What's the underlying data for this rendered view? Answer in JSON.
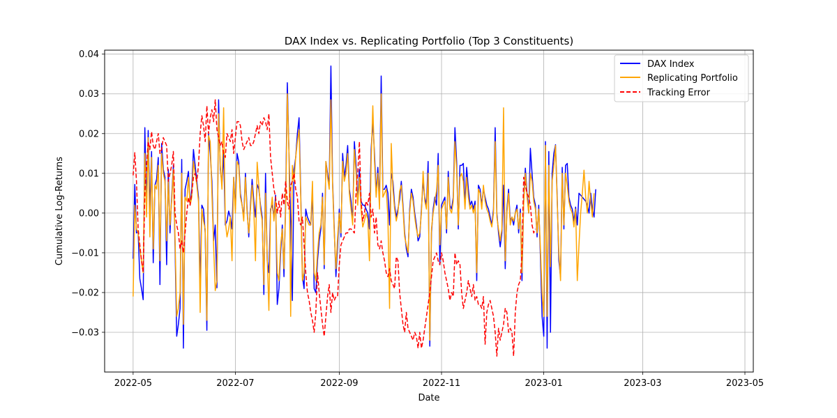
{
  "chart_data": {
    "type": "line",
    "title": "DAX Index vs. Replicating Portfolio (Top 3 Constituents)",
    "xlabel": "Date",
    "ylabel": "Cumulative Log-Returns",
    "xlim": [
      "2022-04-14",
      "2023-05-06"
    ],
    "ylim": [
      -0.04,
      0.041
    ],
    "x_ticks": [
      "2022-05-01",
      "2022-07-01",
      "2022-09-01",
      "2022-11-01",
      "2023-01-01",
      "2023-03-01",
      "2023-05-01"
    ],
    "x_tick_labels": [
      "2022-05",
      "2022-07",
      "2022-09",
      "2022-11",
      "2023-01",
      "2023-03",
      "2023-05"
    ],
    "y_ticks": [
      -0.03,
      -0.02,
      -0.01,
      0.0,
      0.01,
      0.02,
      0.03,
      0.04
    ],
    "y_tick_labels": [
      "−0.03",
      "−0.02",
      "−0.01",
      "0.00",
      "0.01",
      "0.02",
      "0.03",
      "0.04"
    ],
    "grid": true,
    "legend_position": "top-right",
    "x_start": "2022-05-01",
    "x_step_days": 1,
    "series": [
      {
        "name": "DAX Index",
        "color": "#0000ff",
        "dash": "solid",
        "values": [
          -0.0115,
          0.0072,
          -0.005,
          -0.0048,
          -0.0165,
          -0.019,
          -0.0218,
          0.0215,
          0.0015,
          0.0208,
          0.0002,
          0.0155,
          -0.0125,
          0.007,
          0.0085,
          0.014,
          -0.018,
          0.0175,
          0.011,
          0.009,
          -0.013,
          0.011,
          -0.005,
          0.004,
          0.012,
          -0.008,
          -0.031,
          -0.028,
          -0.024,
          0.0135,
          -0.034,
          0.006,
          0.008,
          0.0105,
          0.002,
          0.006,
          0.016,
          0.012,
          0.008,
          0.004,
          -0.018,
          0.002,
          0.001,
          -0.005,
          -0.0295,
          0.02,
          0.015,
          0.008,
          -0.007,
          -0.003,
          -0.0188,
          0.0285,
          0.011,
          0.0075,
          0.015,
          -0.003,
          -0.002,
          0.0005,
          -0.001,
          -0.004,
          0.009,
          0.001,
          0.015,
          0.013,
          0.005,
          0.002,
          -0.001,
          0.01,
          0.001,
          -0.006,
          0.002,
          0.0085,
          0.003,
          -0.001,
          0.0072,
          0.006,
          0.002,
          -0.001,
          -0.0205,
          0.01,
          -0.012,
          -0.015,
          0.001,
          0.002,
          -0.001,
          0.0045,
          -0.023,
          -0.019,
          -0.01,
          -0.003,
          -0.016,
          0.003,
          0.0328,
          0.015,
          -0.002,
          -0.022,
          0.011,
          0.014,
          0.02,
          0.024,
          0.005,
          -0.016,
          -0.019,
          0.001,
          -0.001,
          -0.002,
          -0.003,
          0.005,
          -0.019,
          -0.02,
          -0.012,
          -0.007,
          -0.004,
          0.005,
          -0.014,
          0.013,
          0.01,
          0.007,
          0.037,
          0.008,
          -0.004,
          -0.016,
          -0.008,
          0.001,
          -0.006,
          0.015,
          0.009,
          0.012,
          0.017,
          0.006,
          0.003,
          -0.002,
          0.018,
          0.012,
          0.003,
          0.011,
          0.003,
          0.002,
          0.002,
          0.001,
          0.0,
          -0.004,
          0.016,
          0.023,
          0.015,
          0.005,
          0.0115,
          0.003,
          0.0345,
          0.006,
          0.006,
          0.007,
          0.005,
          -0.003,
          0.01,
          0.008,
          0.002,
          -0.001,
          0.001,
          0.0035,
          0.008,
          0.002,
          -0.005,
          -0.009,
          -0.011,
          0.001,
          0.006,
          0.004,
          0.0,
          -0.003,
          -0.007,
          -0.006,
          0.001,
          0.008,
          0.004,
          0.002,
          0.013,
          -0.0335,
          -0.005,
          0.001,
          0.004,
          0.002,
          0.015,
          -0.013,
          0.002,
          0.003,
          0.004,
          -0.005,
          0.0105,
          0.002,
          0.001,
          0.004,
          0.0215,
          0.013,
          -0.004,
          0.012,
          0.012,
          0.0125,
          0.002,
          0.0115,
          0.006,
          0.002,
          0.003,
          0.001,
          0.003,
          -0.017,
          0.007,
          0.006,
          0.002,
          0.006,
          0.004,
          0.002,
          0.001,
          -0.001,
          -0.003,
          0.001,
          0.0215,
          0.0,
          -0.005,
          -0.0085,
          -0.005,
          0.007,
          -0.014,
          0.001,
          0.006,
          -0.002,
          -0.001,
          -0.003,
          0.0,
          0.002,
          -0.005,
          0.001,
          -0.017,
          0.003,
          0.0113,
          0.005,
          0.0,
          0.0163,
          0.01,
          0.004,
          0.002,
          -0.006,
          0.002,
          -0.011,
          -0.026,
          -0.031,
          0.018,
          -0.034,
          0.0155,
          -0.03,
          0.01,
          0.015,
          0.0172,
          0.004,
          -0.012,
          -0.016,
          0.0115,
          -0.004,
          0.012,
          0.0125,
          0.004,
          0.002,
          0.001,
          -0.002,
          0.0015,
          -0.003,
          0.005,
          0.0045,
          0.004,
          0.0035,
          0.003,
          0.002,
          0.0,
          0.005,
          0.001,
          -0.001,
          0.006
        ]
      },
      {
        "name": "Replicating Portfolio",
        "color": "#ffa500",
        "dash": "solid",
        "values": [
          -0.021,
          0.002,
          -0.004,
          -0.005,
          -0.009,
          -0.012,
          -0.015,
          0.015,
          -0.001,
          0.019,
          -0.006,
          0.014,
          -0.009,
          0.007,
          0.006,
          0.012,
          -0.012,
          0.015,
          0.01,
          0.008,
          -0.007,
          0.008,
          -0.003,
          0.003,
          0.011,
          -0.006,
          -0.026,
          -0.024,
          -0.02,
          0.01,
          -0.028,
          0.004,
          0.003,
          0.009,
          0.002,
          0.004,
          0.013,
          0.01,
          0.007,
          0.003,
          -0.025,
          0.001,
          -0.002,
          -0.004,
          -0.027,
          0.0195,
          0.018,
          0.005,
          -0.008,
          -0.0195,
          -0.017,
          0.025,
          0.012,
          0.006,
          0.0265,
          -0.002,
          -0.006,
          -0.004,
          -0.001,
          -0.012,
          0.009,
          0.0,
          0.013,
          0.012,
          0.004,
          0.002,
          -0.002,
          0.009,
          0.0,
          -0.005,
          0.001,
          0.007,
          0.001,
          -0.012,
          0.0128,
          0.007,
          0.001,
          -0.002,
          -0.018,
          0.005,
          -0.011,
          -0.0245,
          0.0,
          0.004,
          -0.002,
          0.003,
          -0.015,
          -0.017,
          -0.008,
          -0.004,
          -0.014,
          0.001,
          0.03,
          0.015,
          -0.026,
          0.012,
          0.008,
          0.014,
          0.018,
          0.021,
          0.004,
          -0.017,
          -0.015,
          -0.001,
          -0.002,
          -0.003,
          -0.003,
          0.008,
          -0.015,
          -0.017,
          -0.01,
          -0.005,
          -0.003,
          0.004,
          -0.013,
          0.013,
          0.009,
          0.006,
          0.0285,
          0.007,
          -0.005,
          -0.014,
          -0.006,
          0.0,
          -0.005,
          0.013,
          0.008,
          0.01,
          0.015,
          0.005,
          0.001,
          -0.003,
          0.016,
          0.01,
          0.002,
          0.009,
          0.001,
          -0.0035,
          -0.002,
          0.0,
          -0.0015,
          -0.012,
          0.013,
          0.027,
          0.013,
          0.004,
          0.01,
          0.001,
          0.03,
          0.004,
          0.005,
          0.006,
          -0.001,
          -0.024,
          0.0175,
          0.006,
          0.001,
          -0.002,
          0.0,
          0.0055,
          0.007,
          0.001,
          -0.006,
          -0.008,
          -0.01,
          0.0,
          0.005,
          0.003,
          -0.001,
          -0.004,
          -0.006,
          -0.005,
          0.0,
          0.0105,
          0.003,
          0.001,
          0.01,
          -0.032,
          -0.004,
          0.0,
          0.003,
          0.0055,
          0.012,
          -0.008,
          0.001,
          0.002,
          0.003,
          -0.004,
          0.009,
          0.001,
          0.0,
          0.003,
          0.018,
          0.011,
          -0.003,
          0.009,
          0.01,
          0.008,
          0.001,
          0.009,
          0.004,
          0.001,
          0.002,
          0.0,
          0.002,
          -0.015,
          0.006,
          0.005,
          0.001,
          0.007,
          0.003,
          0.001,
          0.0,
          -0.002,
          -0.0035,
          0.0,
          0.018,
          -0.001,
          -0.004,
          -0.007,
          -0.004,
          0.0265,
          -0.012,
          0.0,
          0.005,
          -0.003,
          -0.001,
          -0.002,
          0.0,
          0.001,
          -0.004,
          0.0,
          -0.015,
          0.002,
          0.01,
          0.004,
          0.0,
          0.01,
          0.008,
          0.003,
          0.001,
          -0.005,
          0.001,
          -0.009,
          -0.02,
          -0.026,
          0.017,
          -0.026,
          0.012,
          -0.0135,
          0.008,
          0.012,
          0.017,
          0.003,
          -0.01,
          -0.017,
          0.01,
          -0.003,
          0.01,
          0.007,
          0.003,
          0.001,
          0.0,
          -0.0035,
          0.001,
          -0.017,
          -0.008,
          0.0,
          0.005,
          0.0108,
          0.004,
          0.0,
          0.008,
          0.003,
          -0.001,
          0.005
        ]
      },
      {
        "name": "Tracking Error",
        "color": "#ff0000",
        "dash": "dashed",
        "values": [
          0.0095,
          0.0152,
          0.008,
          -0.004,
          -0.008,
          -0.012,
          -0.015,
          0.005,
          0.012,
          0.018,
          0.016,
          0.0205,
          0.017,
          0.016,
          0.018,
          0.02,
          0.015,
          0.016,
          0.019,
          0.018,
          0.017,
          0.008,
          0.01,
          0.012,
          0.0155,
          0.0,
          -0.003,
          -0.005,
          -0.009,
          -0.007,
          -0.01,
          -0.005,
          0.0,
          0.004,
          0.002,
          0.005,
          0.009,
          0.01,
          0.008,
          0.012,
          0.02,
          0.0245,
          0.022,
          0.018,
          0.027,
          0.02,
          0.024,
          0.026,
          0.023,
          0.0285,
          0.021,
          0.019,
          0.017,
          0.018,
          0.015,
          0.014,
          0.02,
          0.019,
          0.018,
          0.021,
          0.015,
          0.019,
          0.023,
          0.023,
          0.022,
          0.018,
          0.016,
          0.017,
          0.018,
          0.019,
          0.017,
          0.017,
          0.018,
          0.02,
          0.022,
          0.02,
          0.023,
          0.022,
          0.024,
          0.023,
          0.021,
          0.025,
          0.014,
          0.01,
          0.006,
          0.004,
          0.0,
          0.003,
          -0.001,
          0.005,
          0.002,
          0.008,
          0.003,
          0.001,
          0.007,
          0.008,
          0.01,
          0.006,
          0.004,
          -0.002,
          -0.003,
          -0.001,
          -0.008,
          -0.015,
          -0.02,
          -0.022,
          -0.025,
          -0.027,
          -0.03,
          -0.025,
          -0.015,
          -0.02,
          -0.024,
          -0.028,
          -0.031,
          -0.026,
          -0.021,
          -0.018,
          -0.025,
          -0.02,
          -0.022,
          -0.021,
          -0.021,
          -0.013,
          -0.008,
          -0.007,
          -0.006,
          -0.005,
          -0.005,
          -0.004,
          -0.004,
          -0.0045,
          -0.005,
          0.005,
          0.01,
          0.018,
          0.003,
          -0.002,
          0.0,
          0.003,
          0.002,
          0.005,
          -0.001,
          0.001,
          -0.005,
          -0.001,
          -0.008,
          -0.009,
          -0.007,
          -0.01,
          -0.012,
          -0.015,
          -0.016,
          -0.014,
          -0.017,
          -0.018,
          -0.019,
          -0.011,
          -0.012,
          -0.02,
          -0.024,
          -0.028,
          -0.03,
          -0.025,
          -0.029,
          -0.03,
          -0.031,
          -0.032,
          -0.03,
          -0.031,
          -0.034,
          -0.03,
          -0.034,
          -0.032,
          -0.029,
          -0.026,
          -0.023,
          -0.02,
          -0.016,
          -0.012,
          -0.011,
          -0.01,
          -0.012,
          -0.013,
          -0.01,
          -0.012,
          -0.015,
          -0.017,
          -0.019,
          -0.022,
          -0.02,
          -0.021,
          -0.01,
          -0.013,
          -0.012,
          -0.013,
          -0.02,
          -0.024,
          -0.022,
          -0.02,
          -0.017,
          -0.019,
          -0.021,
          -0.018,
          -0.022,
          -0.021,
          -0.023,
          -0.023,
          -0.024,
          -0.021,
          -0.033,
          -0.025,
          -0.023,
          -0.022,
          -0.024,
          -0.026,
          -0.03,
          -0.036,
          -0.029,
          -0.032,
          -0.03,
          -0.028,
          -0.024,
          -0.025,
          -0.03,
          -0.029,
          -0.03,
          -0.036,
          -0.025,
          -0.02,
          -0.018,
          -0.017,
          -0.01,
          0.009,
          0.007,
          0.005,
          0.004,
          0.002,
          -0.003,
          -0.005,
          -0.004
        ]
      }
    ]
  }
}
